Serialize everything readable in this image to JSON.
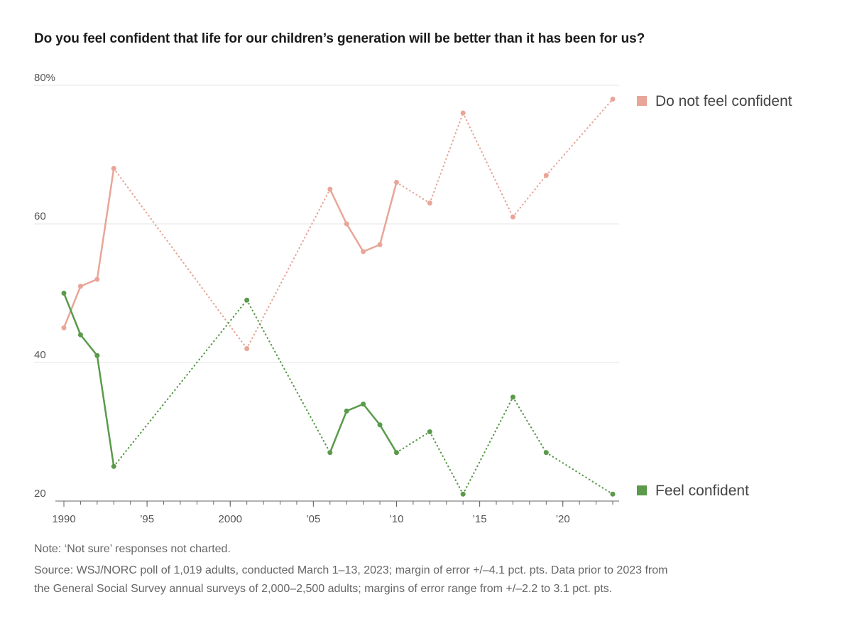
{
  "title": "Do you feel confident that life for our children’s generation will be better than it has been for us?",
  "note": "Note: ‘Not sure’ responses not charted.",
  "source_line1": "Source: WSJ/NORC poll of 1,019 adults, conducted March 1–13, 2023; margin of error +/–4.1 pct. pts. Data prior to 2023 from",
  "source_line2": "the General Social Survey annual surveys of 2,000–2,500 adults; margins of error range from +/–2.2 to 3.1 pct. pts.",
  "colors": {
    "not_confident": "#e8a598",
    "confident": "#5a9a4a",
    "grid": "#e6e6e6",
    "axis": "#666666"
  },
  "chart_data": {
    "type": "line",
    "title": "Do you feel confident that life for our children’s generation will be better than it has been for us?",
    "xlabel": "",
    "ylabel": "",
    "xlim": [
      1990,
      2023
    ],
    "ylim": [
      20,
      80
    ],
    "y_ticks": [
      {
        "value": 80,
        "label": "80%"
      },
      {
        "value": 60,
        "label": "60"
      },
      {
        "value": 40,
        "label": "40"
      },
      {
        "value": 20,
        "label": "20"
      }
    ],
    "x_ticks": [
      {
        "value": 1990,
        "label": "1990"
      },
      {
        "value": 1995,
        "label": "’95"
      },
      {
        "value": 2000,
        "label": "2000"
      },
      {
        "value": 2005,
        "label": "’05"
      },
      {
        "value": 2010,
        "label": "’10"
      },
      {
        "value": 2015,
        "label": "’15"
      },
      {
        "value": 2020,
        "label": "’20"
      }
    ],
    "series": [
      {
        "name": "Do not feel confident",
        "key": "not_confident",
        "points": [
          {
            "x": 1990,
            "y": 45
          },
          {
            "x": 1991,
            "y": 51
          },
          {
            "x": 1992,
            "y": 52
          },
          {
            "x": 1993,
            "y": 68
          },
          {
            "x": 2001,
            "y": 42
          },
          {
            "x": 2006,
            "y": 65
          },
          {
            "x": 2007,
            "y": 60
          },
          {
            "x": 2008,
            "y": 56
          },
          {
            "x": 2009,
            "y": 57
          },
          {
            "x": 2010,
            "y": 66
          },
          {
            "x": 2012,
            "y": 63
          },
          {
            "x": 2014,
            "y": 76
          },
          {
            "x": 2017,
            "y": 61
          },
          {
            "x": 2019,
            "y": 67
          },
          {
            "x": 2023,
            "y": 78
          }
        ]
      },
      {
        "name": "Feel confident",
        "key": "confident",
        "points": [
          {
            "x": 1990,
            "y": 50
          },
          {
            "x": 1991,
            "y": 44
          },
          {
            "x": 1992,
            "y": 41
          },
          {
            "x": 1993,
            "y": 25
          },
          {
            "x": 2001,
            "y": 49
          },
          {
            "x": 2006,
            "y": 27
          },
          {
            "x": 2007,
            "y": 33
          },
          {
            "x": 2008,
            "y": 34
          },
          {
            "x": 2009,
            "y": 31
          },
          {
            "x": 2010,
            "y": 27
          },
          {
            "x": 2012,
            "y": 30
          },
          {
            "x": 2014,
            "y": 21
          },
          {
            "x": 2017,
            "y": 35
          },
          {
            "x": 2019,
            "y": 27
          },
          {
            "x": 2023,
            "y": 21
          }
        ]
      }
    ],
    "notes": "Solid segments connect consecutive annual surveys; dotted segments span gaps between surveys."
  }
}
